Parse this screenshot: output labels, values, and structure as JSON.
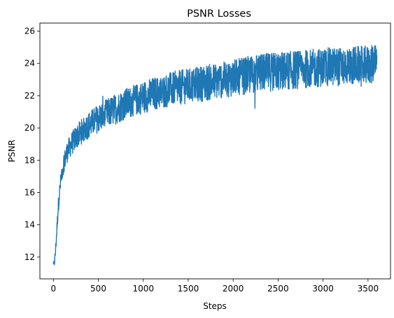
{
  "chart_data": {
    "type": "line",
    "title": "PSNR Losses",
    "xlabel": "Steps",
    "ylabel": "PSNR",
    "xlim": [
      -150,
      3750
    ],
    "ylim": [
      10.65,
      26.5
    ],
    "xticks": [
      0,
      500,
      1000,
      1500,
      2000,
      2500,
      3000,
      3500
    ],
    "yticks": [
      12,
      14,
      16,
      18,
      20,
      22,
      24,
      26
    ],
    "grid": false,
    "series": [
      {
        "color": "#1f77b4",
        "x": [
          0,
          10,
          20,
          30,
          40,
          50,
          60,
          70,
          80,
          90,
          100,
          120,
          140,
          160,
          180,
          200,
          250,
          300,
          350,
          400,
          450,
          500,
          600,
          700,
          800,
          900,
          1000,
          1100,
          1200,
          1300,
          1400,
          1500,
          1600,
          1700,
          1800,
          1900,
          2000,
          2100,
          2200,
          2300,
          2400,
          2500,
          2600,
          2700,
          2800,
          2900,
          3000,
          3100,
          3200,
          3300,
          3400,
          3500,
          3600
        ],
        "y": [
          11.5,
          11.6,
          12.1,
          12.9,
          13.8,
          14.8,
          15.5,
          16.1,
          16.6,
          17.0,
          17.4,
          17.9,
          18.3,
          18.6,
          18.8,
          19.0,
          19.4,
          19.7,
          20.0,
          20.2,
          20.4,
          20.6,
          20.9,
          21.2,
          21.5,
          21.7,
          21.9,
          22.1,
          22.2,
          22.4,
          22.5,
          22.6,
          22.7,
          22.8,
          22.9,
          23.0,
          23.1,
          23.2,
          23.3,
          23.4,
          23.45,
          23.5,
          23.55,
          23.6,
          23.65,
          23.7,
          23.75,
          23.8,
          23.8,
          23.85,
          23.9,
          23.9,
          23.95
        ],
        "noise_band": [
          0.2,
          0.2,
          0.25,
          0.3,
          0.35,
          0.4,
          0.4,
          0.4,
          0.45,
          0.45,
          0.5,
          0.5,
          0.55,
          0.55,
          0.55,
          0.6,
          0.6,
          0.65,
          0.65,
          0.7,
          0.7,
          0.75,
          0.75,
          0.8,
          0.8,
          0.8,
          0.85,
          0.85,
          0.85,
          0.9,
          0.9,
          0.9,
          0.9,
          0.95,
          0.95,
          0.95,
          0.95,
          0.95,
          1.0,
          1.0,
          1.0,
          1.0,
          1.0,
          1.0,
          1.0,
          1.0,
          1.0,
          1.0,
          1.0,
          1.0,
          1.0,
          1.0,
          1.0
        ]
      }
    ]
  }
}
